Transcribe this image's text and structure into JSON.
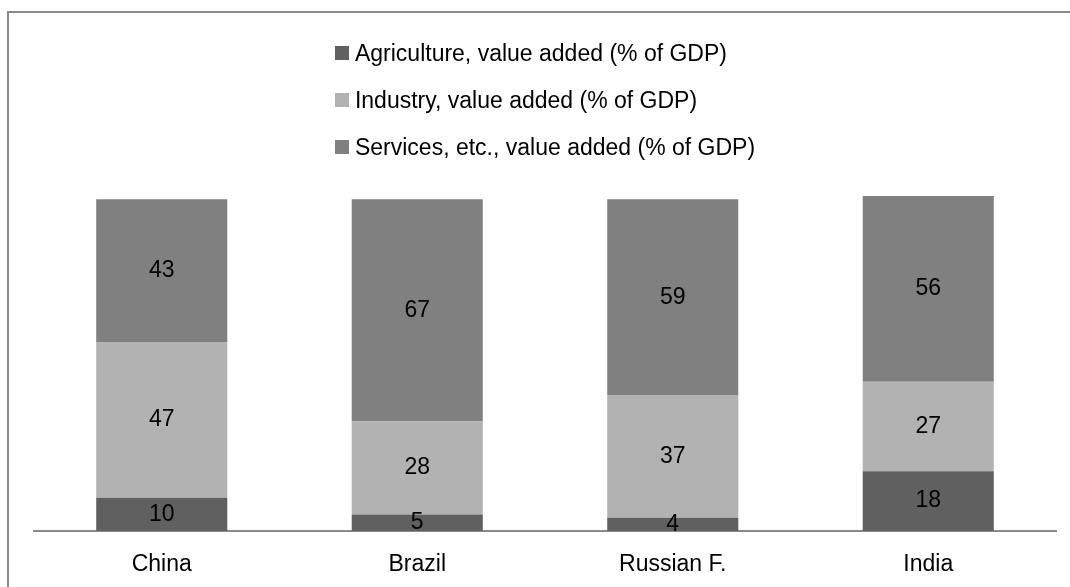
{
  "chart_data": {
    "type": "bar",
    "categories": [
      "China",
      "Brazil",
      "Russian F.",
      "India"
    ],
    "stacked": true,
    "series": [
      {
        "name": "Agriculture, value added (% of GDP)",
        "color": "#606060",
        "values": [
          10,
          5,
          4,
          18
        ]
      },
      {
        "name": "Industry, value added (% of GDP)",
        "color": "#b2b2b2",
        "values": [
          47,
          28,
          37,
          27
        ]
      },
      {
        "name": "Services, etc., value added (% of GDP)",
        "color": "#808080",
        "values": [
          43,
          67,
          59,
          56
        ]
      }
    ],
    "data_labels": true,
    "legend": "top",
    "grid": false,
    "tick_labels": "x"
  }
}
